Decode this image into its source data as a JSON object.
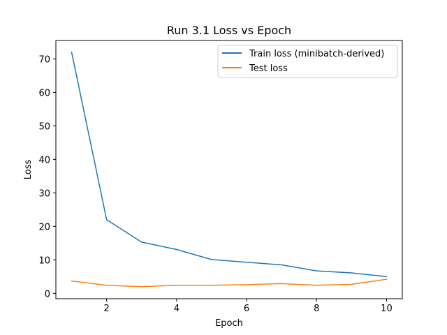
{
  "chart_data": {
    "type": "line",
    "title": "Run 3.1 Loss vs Epoch",
    "xlabel": "Epoch",
    "ylabel": "Loss",
    "x": [
      1,
      2,
      3,
      4,
      5,
      6,
      7,
      8,
      9,
      10
    ],
    "xticks": [
      2,
      4,
      6,
      8,
      10
    ],
    "yticks": [
      0,
      10,
      20,
      30,
      40,
      50,
      60,
      70
    ],
    "xlim": [
      0.55,
      10.45
    ],
    "ylim": [
      -1.6,
      75.5
    ],
    "grid": false,
    "legend_position": "top-right",
    "series": [
      {
        "name": "Train loss (minibatch-derived)",
        "color": "#1f77b4",
        "values": [
          72.0,
          22.0,
          15.3,
          13.1,
          10.1,
          9.3,
          8.5,
          6.7,
          6.1,
          5.0
        ]
      },
      {
        "name": "Test loss",
        "color": "#ff7f0e",
        "values": [
          3.7,
          2.4,
          2.0,
          2.4,
          2.4,
          2.6,
          2.9,
          2.4,
          2.7,
          4.2
        ]
      }
    ]
  }
}
